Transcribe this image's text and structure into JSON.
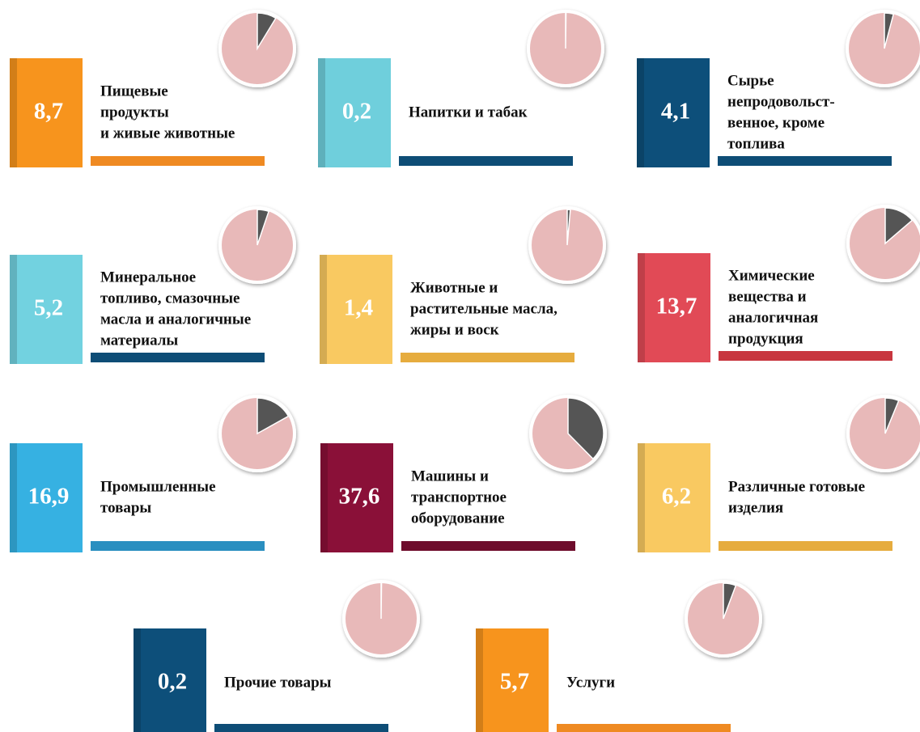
{
  "items": [
    {
      "value": 8.7,
      "value_label": "8,7",
      "label": [
        "Пищевые",
        "продукты",
        "и живые животные"
      ],
      "color": "#f7941d",
      "bar_color": "#ef8a22"
    },
    {
      "value": 0.2,
      "value_label": "0,2",
      "label": [
        "Напитки и табак"
      ],
      "color": "#6fcfdc",
      "bar_color": "#0e4d76"
    },
    {
      "value": 4.1,
      "value_label": "4,1",
      "label": [
        "Сырье",
        "непродовольст-",
        "венное, кроме",
        "топлива"
      ],
      "color": "#0d4f7a",
      "bar_color": "#0e4d76"
    },
    {
      "value": 5.2,
      "value_label": "5,2",
      "label": [
        "Минеральное",
        "топливо, смазочные",
        "масла и аналогичные",
        "материалы"
      ],
      "color": "#72d2e0",
      "bar_color": "#0e4d76"
    },
    {
      "value": 1.4,
      "value_label": "1,4",
      "label": [
        "Животные и",
        "растительные масла,",
        "жиры и воск"
      ],
      "color": "#f9c961",
      "bar_color": "#e6ac3e"
    },
    {
      "value": 13.7,
      "value_label": "13,7",
      "label": [
        "Химические",
        "вещества и",
        "аналогичная",
        "продукция"
      ],
      "color": "#e14a56",
      "bar_color": "#c8363f"
    },
    {
      "value": 16.9,
      "value_label": "16,9",
      "label": [
        "Промышленные",
        "товары"
      ],
      "color": "#36b1e2",
      "bar_color": "#2a8fc0"
    },
    {
      "value": 37.6,
      "value_label": "37,6",
      "label": [
        "Машины и",
        "транспортное",
        "оборудование"
      ],
      "color": "#8a1038",
      "bar_color": "#6e0c2c"
    },
    {
      "value": 6.2,
      "value_label": "6,2",
      "label": [
        "Различные готовые",
        "изделия"
      ],
      "color": "#f9c961",
      "bar_color": "#e6ac3e"
    },
    {
      "value": 0.2,
      "value_label": "0,2",
      "label": [
        "Прочие товары"
      ],
      "color": "#0d4f7a",
      "bar_color": "#0e4d76"
    },
    {
      "value": 5.7,
      "value_label": "5,7",
      "label": [
        "Услуги"
      ],
      "color": "#f7941d",
      "bar_color": "#ef8a22"
    }
  ]
}
